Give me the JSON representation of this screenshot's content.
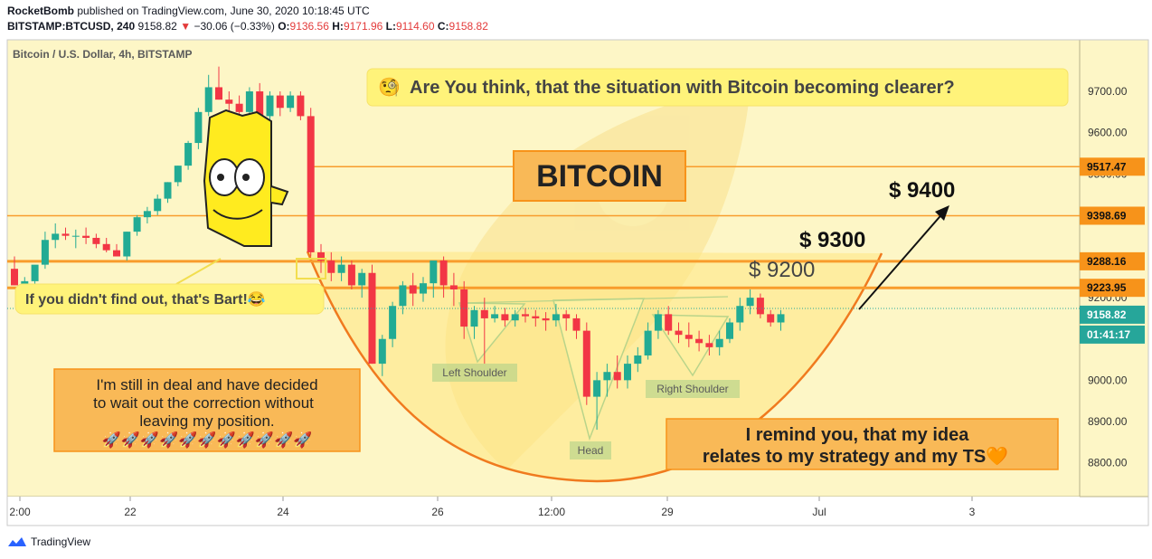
{
  "header": {
    "author": "RocketBomb",
    "published_text": "published on TradingView.com, June 30, 2020 10:18:45 UTC",
    "symbol_line_prefix": "BITSTAMP:BTCUSD, 240",
    "last": "9158.82",
    "change": "−30.06 (−0.33%)",
    "o_label": "O:",
    "o": "9136.56",
    "h_label": "H:",
    "h": "9171.96",
    "l_label": "L:",
    "l": "9114.60",
    "c_label": "C:",
    "c": "9158.82",
    "down_arrow": "▼"
  },
  "footer": {
    "brand": "TradingView"
  },
  "colors": {
    "bull": "#22ab94",
    "bear": "#f23645",
    "pane_bg": "#fdf6c6",
    "orange": "#f7931a",
    "line_orange": "#f89c2c",
    "price_green": "#26a69a"
  },
  "chart_data": {
    "type": "candlestick",
    "title": "Bitcoin / U.S. Dollar, 4h, BITSTAMP",
    "y_axis": {
      "range": [
        8718,
        9825
      ],
      "ticks": [
        "9700.00",
        "9600.00",
        "9500.00",
        "9200.00",
        "9000.00",
        "8900.00",
        "8800.00"
      ]
    },
    "x_axis": {
      "ticks": [
        "2:00",
        "22",
        "24",
        "26",
        "12:00",
        "29",
        "Jul",
        "3"
      ]
    },
    "price_labels": [
      {
        "value": 9517.47,
        "text": "9517.47"
      },
      {
        "value": 9398.69,
        "text": "9398.69"
      },
      {
        "value": 9288.16,
        "text": "9288.16"
      },
      {
        "value": 9223.95,
        "text": "9223.95"
      },
      {
        "value": 9158.82,
        "text": "9158.82"
      }
    ],
    "countdown": "01:41:17",
    "candles": [
      [
        9270,
        9300,
        9230,
        9230
      ],
      [
        9230,
        9250,
        9200,
        9240
      ],
      [
        9240,
        9270,
        9210,
        9280
      ],
      [
        9280,
        9360,
        9270,
        9340
      ],
      [
        9340,
        9380,
        9320,
        9355
      ],
      [
        9355,
        9370,
        9340,
        9350
      ],
      [
        9350,
        9365,
        9320,
        9350
      ],
      [
        9350,
        9370,
        9330,
        9345
      ],
      [
        9345,
        9355,
        9320,
        9330
      ],
      [
        9330,
        9345,
        9310,
        9315
      ],
      [
        9315,
        9330,
        9300,
        9300
      ],
      [
        9300,
        9360,
        9290,
        9360
      ],
      [
        9360,
        9400,
        9350,
        9395
      ],
      [
        9395,
        9420,
        9380,
        9410
      ],
      [
        9410,
        9450,
        9400,
        9440
      ],
      [
        9440,
        9480,
        9430,
        9480
      ],
      [
        9480,
        9520,
        9470,
        9520
      ],
      [
        9520,
        9580,
        9510,
        9575
      ],
      [
        9575,
        9660,
        9560,
        9650
      ],
      [
        9650,
        9740,
        9640,
        9710
      ],
      [
        9710,
        9760,
        9680,
        9680
      ],
      [
        9680,
        9700,
        9640,
        9670
      ],
      [
        9670,
        9690,
        9640,
        9650
      ],
      [
        9650,
        9710,
        9640,
        9700
      ],
      [
        9700,
        9720,
        9620,
        9640
      ],
      [
        9640,
        9700,
        9620,
        9690
      ],
      [
        9690,
        9700,
        9640,
        9660
      ],
      [
        9660,
        9700,
        9650,
        9690
      ],
      [
        9690,
        9700,
        9630,
        9640
      ],
      [
        9640,
        9660,
        9300,
        9310
      ],
      [
        9310,
        9330,
        9260,
        9290
      ],
      [
        9290,
        9310,
        9240,
        9260
      ],
      [
        9260,
        9300,
        9240,
        9280
      ],
      [
        9280,
        9290,
        9220,
        9230
      ],
      [
        9230,
        9270,
        9200,
        9260
      ],
      [
        9260,
        9280,
        9040,
        9040
      ],
      [
        9040,
        9110,
        9010,
        9100
      ],
      [
        9100,
        9190,
        9080,
        9180
      ],
      [
        9180,
        9240,
        9160,
        9230
      ],
      [
        9230,
        9260,
        9180,
        9210
      ],
      [
        9210,
        9250,
        9190,
        9235
      ],
      [
        9235,
        9280,
        9200,
        9290
      ],
      [
        9290,
        9300,
        9200,
        9230
      ],
      [
        9230,
        9260,
        9180,
        9220
      ],
      [
        9220,
        9240,
        9100,
        9130
      ],
      [
        9130,
        9180,
        9100,
        9170
      ],
      [
        9170,
        9200,
        9040,
        9150
      ],
      [
        9150,
        9180,
        9140,
        9160
      ],
      [
        9160,
        9175,
        9130,
        9145
      ],
      [
        9145,
        9170,
        9130,
        9160
      ],
      [
        9160,
        9175,
        9140,
        9155
      ],
      [
        9155,
        9170,
        9130,
        9150
      ],
      [
        9150,
        9165,
        9120,
        9145
      ],
      [
        9145,
        9185,
        9130,
        9160
      ],
      [
        9160,
        9170,
        9120,
        9150
      ],
      [
        9150,
        9160,
        9100,
        9120
      ],
      [
        9120,
        9140,
        8940,
        8960
      ],
      [
        8960,
        9020,
        8880,
        9000
      ],
      [
        9000,
        9040,
        8960,
        9020
      ],
      [
        9020,
        9060,
        8980,
        9000
      ],
      [
        9000,
        9060,
        8980,
        9040
      ],
      [
        9040,
        9080,
        9020,
        9060
      ],
      [
        9060,
        9140,
        9050,
        9120
      ],
      [
        9120,
        9170,
        9100,
        9160
      ],
      [
        9160,
        9180,
        9110,
        9120
      ],
      [
        9120,
        9140,
        9090,
        9110
      ],
      [
        9110,
        9140,
        9080,
        9100
      ],
      [
        9100,
        9120,
        9070,
        9090
      ],
      [
        9090,
        9110,
        9060,
        9080
      ],
      [
        9080,
        9120,
        9060,
        9100
      ],
      [
        9100,
        9150,
        9090,
        9140
      ],
      [
        9140,
        9200,
        9120,
        9180
      ],
      [
        9180,
        9220,
        9160,
        9200
      ],
      [
        9200,
        9210,
        9150,
        9160
      ],
      [
        9160,
        9170,
        9130,
        9140
      ],
      [
        9140,
        9170,
        9120,
        9160
      ]
    ],
    "annotations": [
      {
        "id": "question",
        "text": "Are You think, that the situation with Bitcoin becoming clearer?",
        "emoji": "🧐"
      },
      {
        "id": "bitcoin",
        "text": "BITCOIN"
      },
      {
        "id": "bart",
        "text": "If you didn't find out, that's Bart!",
        "emoji": "😂"
      },
      {
        "id": "deal_line1",
        "text": "I'm still in deal and have decided"
      },
      {
        "id": "deal_line2",
        "text": "to wait out the correction without"
      },
      {
        "id": "deal_line3",
        "text": "leaving my position."
      },
      {
        "id": "rockets",
        "text": "🚀🚀🚀🚀🚀🚀🚀🚀🚀🚀🚀"
      },
      {
        "id": "remind_line1",
        "text": "I remind you, that my idea"
      },
      {
        "id": "remind_line2",
        "text": "relates to my strategy and my TS"
      },
      {
        "id": "heart",
        "text": "🧡"
      },
      {
        "id": "left_shoulder",
        "text": "Left Shoulder"
      },
      {
        "id": "head",
        "text": "Head"
      },
      {
        "id": "right_shoulder",
        "text": "Right Shoulder"
      },
      {
        "id": "t9200",
        "text": "$ 9200"
      },
      {
        "id": "t9300",
        "text": "$ 9300"
      },
      {
        "id": "t9400",
        "text": "$ 9400"
      }
    ]
  }
}
